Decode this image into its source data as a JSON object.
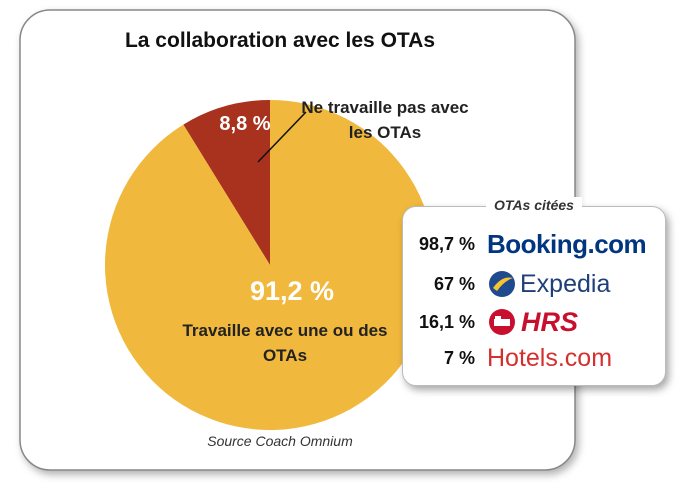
{
  "chart_data": {
    "type": "pie",
    "title": "La collaboration avec les OTAs",
    "categories": [
      "Ne travaille pas avec les OTAs",
      "Travaille avec une ou des OTAs"
    ],
    "values": [
      8.8,
      91.2
    ],
    "value_labels": [
      "8,8 %",
      "91,2 %"
    ],
    "colors": [
      "#a8321d",
      "#f0b83c"
    ],
    "source": "Source Coach Omnium"
  },
  "inset": {
    "title": "OTAs citées",
    "items": [
      {
        "percent": "98,7 %",
        "name": "Booking.com"
      },
      {
        "percent": "67 %",
        "name": "Expedia"
      },
      {
        "percent": "16,1 %",
        "name": "HRS"
      },
      {
        "percent": "7 %",
        "name": "Hotels.com"
      }
    ]
  }
}
